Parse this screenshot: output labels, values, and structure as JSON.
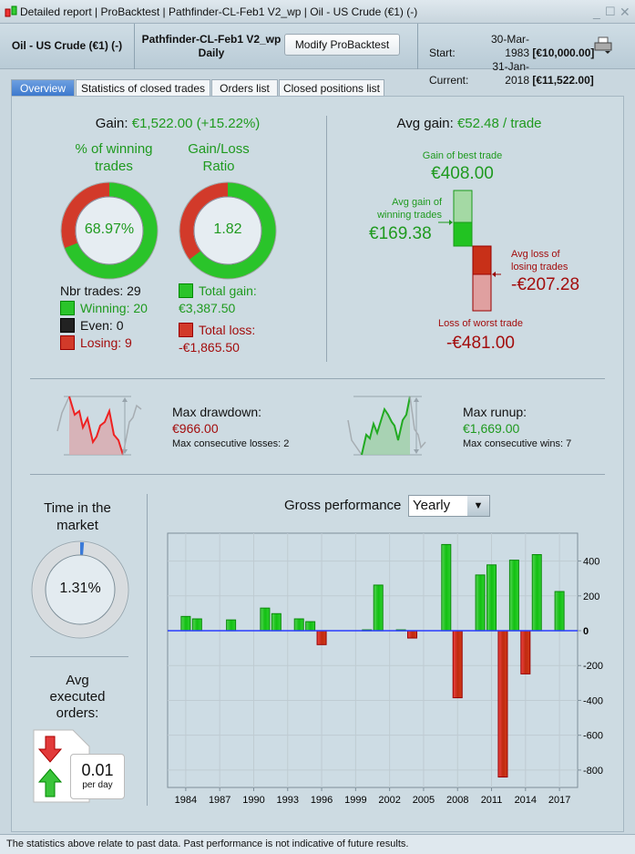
{
  "window": {
    "title_parts": [
      "Detailed report",
      "ProBacktest",
      "Pathfinder-CL-Feb1 V2_wp",
      "Oil - US Crude (€1) (-)"
    ]
  },
  "header": {
    "instrument": "Oil - US Crude (€1) (-)",
    "system": "Pathfinder-CL-Feb1 V2_wp",
    "timeframe": "Daily",
    "modify_label": "Modify ProBacktest",
    "start_label": "Start:",
    "start_date": "30-Mar-1983",
    "start_value": "[€10,000.00]",
    "current_label": "Current:",
    "current_date": "31-Jan-2018",
    "current_value": "[€11,522.00]"
  },
  "tabs": [
    {
      "label": "Overview",
      "active": true
    },
    {
      "label": "Statistics of closed trades"
    },
    {
      "label": "Orders list"
    },
    {
      "label": "Closed positions list"
    }
  ],
  "gain": {
    "label": "Gain:",
    "value": "€1,522.00 (+15.22%)"
  },
  "winning": {
    "title1": "% of winning",
    "title2": "trades",
    "value": "68.97%",
    "fraction": 0.6897,
    "nbr": "Nbr trades: 29",
    "winning": "Winning: 20",
    "even": "Even: 0",
    "losing": "Losing: 9"
  },
  "ratio": {
    "title1": "Gain/Loss",
    "title2": "Ratio",
    "value": "1.82",
    "total_gain_label": "Total gain:",
    "total_gain": "€3,387.50",
    "total_loss_label": "Total loss:",
    "total_loss": "-€1,865.50"
  },
  "avg": {
    "label": "Avg gain:",
    "value": "€52.48 / trade",
    "best_label": "Gain of best trade",
    "best": "€408.00",
    "avg_win_label1": "Avg gain of",
    "avg_win_label2": "winning trades",
    "avg_win": "€169.38",
    "avg_loss_label1": "Avg loss of",
    "avg_loss_label2": "losing trades",
    "avg_loss": "-€207.28",
    "worst_label": "Loss of worst trade",
    "worst": "-€481.00"
  },
  "drawdown": {
    "label": "Max drawdown:",
    "value": "€966.00",
    "sub": "Max consecutive losses: 2"
  },
  "runup": {
    "label": "Max runup:",
    "value": "€1,669.00",
    "sub": "Max consecutive wins: 7"
  },
  "market": {
    "title1": "Time in the",
    "title2": "market",
    "value": "1.31%",
    "fraction": 0.0131
  },
  "orders": {
    "title1": "Avg",
    "title2": "executed",
    "title3": "orders:",
    "value": "0.01",
    "unit": "per day"
  },
  "perf": {
    "title": "Gross performance",
    "period": "Yearly"
  },
  "colors": {
    "positive": "#22c322",
    "negative": "#c83018",
    "zero_line": "#2a3cff"
  },
  "chart_data": {
    "type": "bar",
    "title": "Gross performance",
    "ylim": [
      -900,
      560
    ],
    "grid": true,
    "yticks": [
      400,
      200,
      0,
      -200,
      -400,
      -600,
      -800
    ],
    "xticks": [
      1984,
      1987,
      1990,
      1993,
      1996,
      1999,
      2002,
      2005,
      2008,
      2011,
      2014,
      2017
    ],
    "x": [
      1984,
      1985,
      1988,
      1991,
      1992,
      1994,
      1995,
      1996,
      2000,
      2001,
      2003,
      2004,
      2007,
      2008,
      2010,
      2011,
      2012,
      2013,
      2014,
      2015,
      2017
    ],
    "values": [
      82,
      68,
      62,
      130,
      98,
      68,
      52,
      -80,
      5,
      262,
      5,
      -42,
      495,
      -385,
      320,
      378,
      -840,
      405,
      -248,
      437,
      225
    ]
  },
  "footer": "The statistics above relate to past data. Past performance is not indicative of future results."
}
